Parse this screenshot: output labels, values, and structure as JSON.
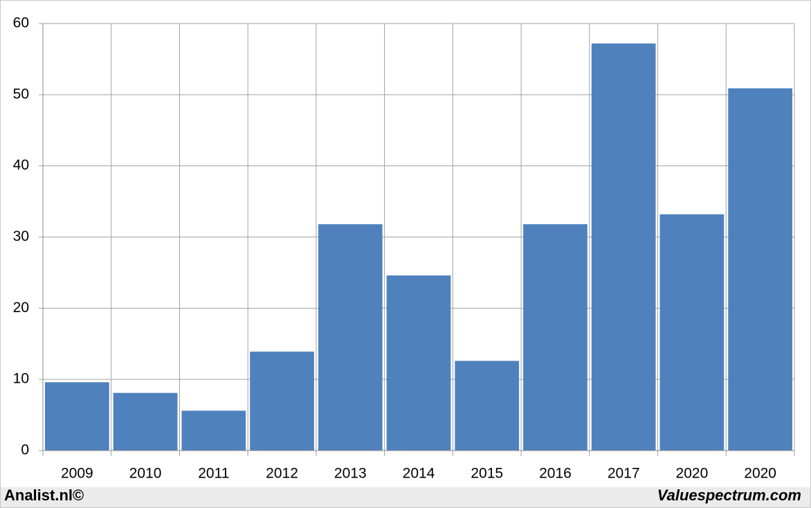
{
  "chart_data": {
    "type": "bar",
    "categories": [
      "2009",
      "2010",
      "2011",
      "2012",
      "2013",
      "2014",
      "2015",
      "2016",
      "2017",
      "2020",
      "2020"
    ],
    "values": [
      9.6,
      8.1,
      5.6,
      13.9,
      31.8,
      24.6,
      12.6,
      31.8,
      57.2,
      33.2,
      50.9
    ],
    "color": "#4f81bd",
    "ylim": [
      0,
      60
    ],
    "yticks": [
      0,
      10,
      20,
      30,
      40,
      50,
      60
    ],
    "grid": true
  },
  "footer": {
    "left": "Analist.nl©",
    "right": "Valuespectrum.com"
  }
}
